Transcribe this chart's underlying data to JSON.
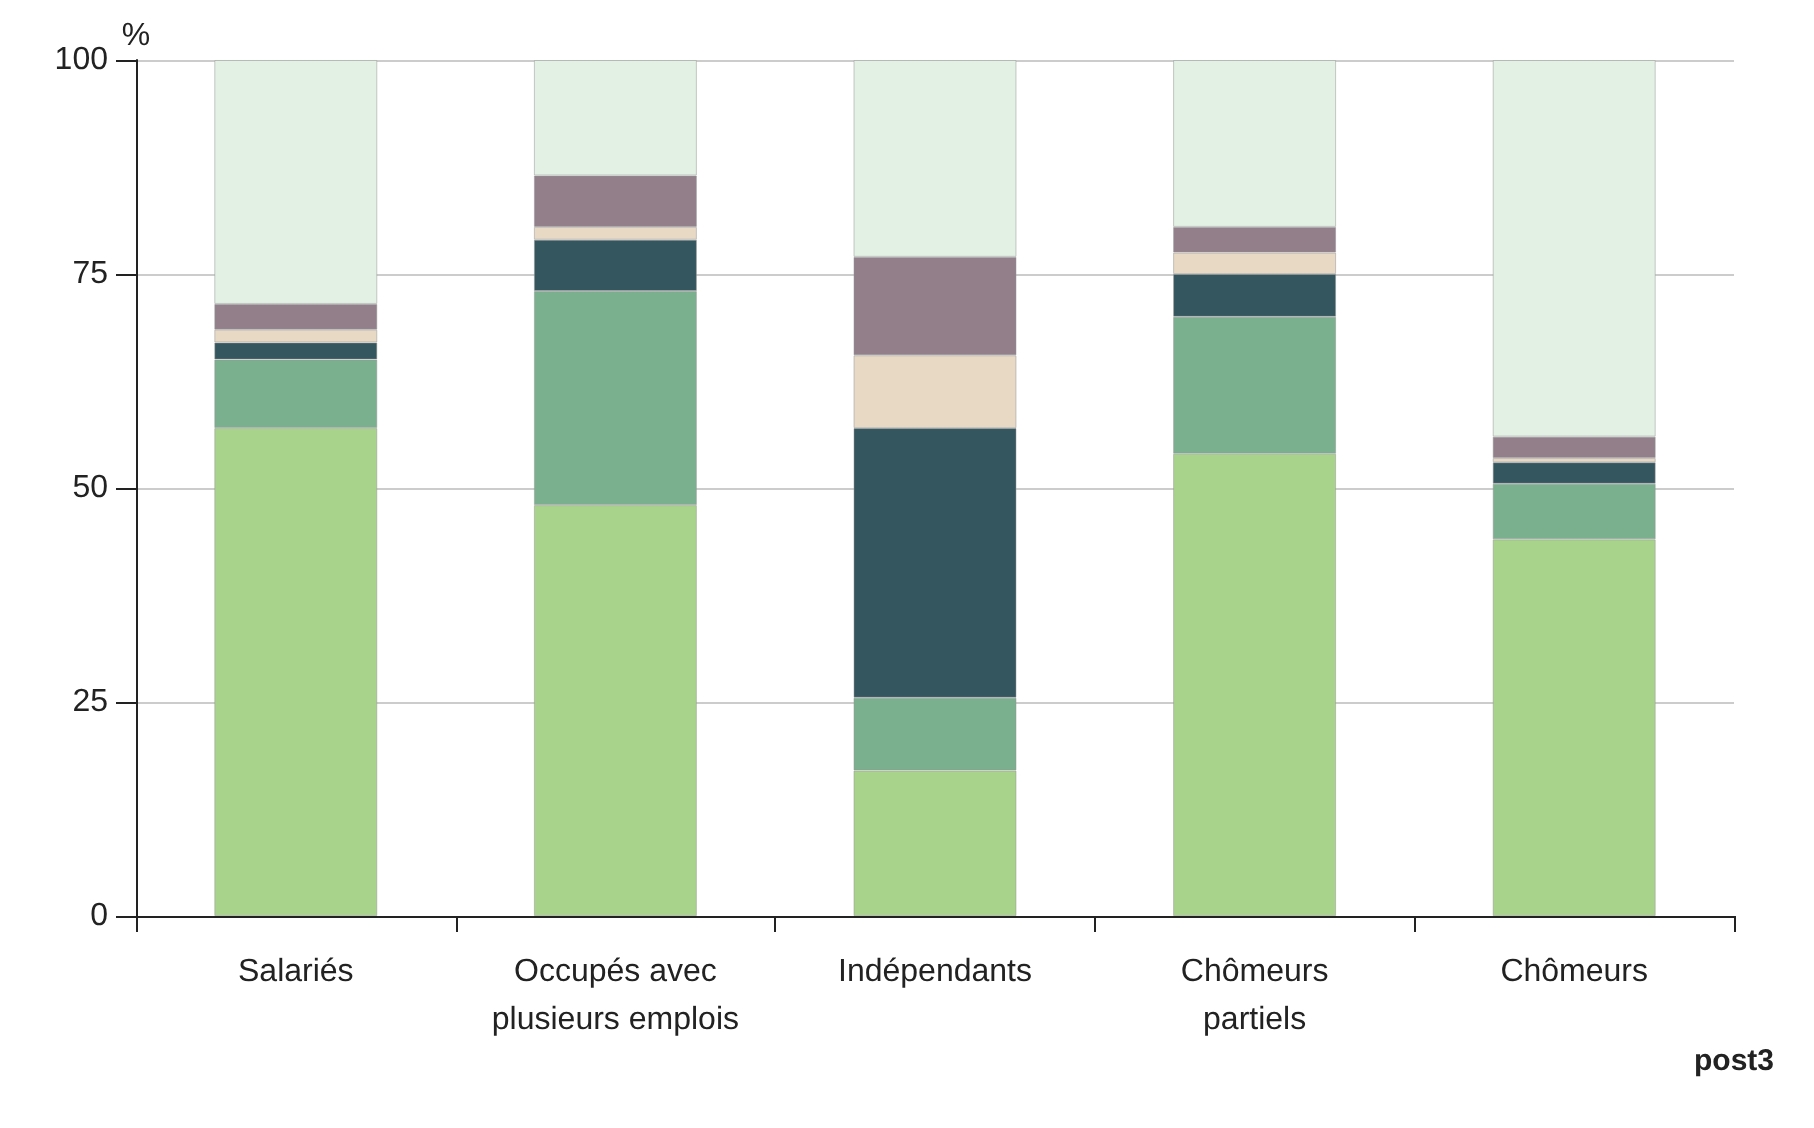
{
  "chart_data": {
    "type": "bar",
    "stacked": true,
    "ylabel": "%",
    "categories": [
      "Salariés",
      "Occupés avec\nplusieurs emplois",
      "Indépendants",
      "Chômeurs\npartiels",
      "Chômeurs"
    ],
    "series": [
      {
        "color": "#a8d38a",
        "values": [
          57,
          48,
          17,
          54,
          44
        ]
      },
      {
        "color": "#7ab08e",
        "values": [
          8,
          25,
          8.5,
          16,
          6.5
        ]
      },
      {
        "color": "#34565f",
        "values": [
          2,
          6,
          31.5,
          5,
          2.5
        ]
      },
      {
        "color": "#e8d9c4",
        "values": [
          1.5,
          1.5,
          8.5,
          2.5,
          0.5
        ]
      },
      {
        "color": "#927f8a",
        "values": [
          3,
          6,
          11.5,
          3,
          2.5
        ]
      },
      {
        "color": "#e2f1e3",
        "values": [
          28.5,
          13.5,
          23,
          19.5,
          44
        ]
      }
    ],
    "ylim": [
      0,
      100
    ],
    "yticks": [
      0,
      25,
      50,
      75,
      100
    ],
    "grid": "y",
    "annotations": [
      "post3"
    ]
  }
}
